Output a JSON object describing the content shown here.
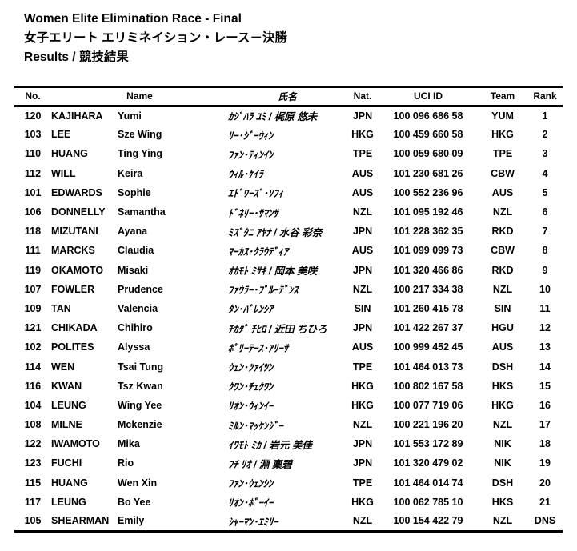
{
  "header": {
    "title_en": "Women Elite Elimination Race - Final",
    "title_ja": "女子エリート エリミネイション・レース－決勝",
    "results_label": "Results / 競技結果"
  },
  "table": {
    "columns": {
      "no": "No.",
      "name": "Name",
      "name_ja": "氏名",
      "nat": "Nat.",
      "uci_id": "UCI ID",
      "team": "Team",
      "rank": "Rank"
    },
    "rows": [
      {
        "no": "120",
        "last": "KAJIHARA",
        "first": "Yumi",
        "name_ja": "ｶｼﾞﾊﾗ ﾕﾐ / 梶原 悠未",
        "nat": "JPN",
        "uci_id": "100 096 686 58",
        "team": "YUM",
        "rank": "1"
      },
      {
        "no": "103",
        "last": "LEE",
        "first": "Sze Wing",
        "name_ja": "ﾘｰ･ｼﾞｰｳｨﾝ",
        "nat": "HKG",
        "uci_id": "100 459 660 58",
        "team": "HKG",
        "rank": "2"
      },
      {
        "no": "110",
        "last": "HUANG",
        "first": "Ting Ying",
        "name_ja": "ﾌｧﾝ･ﾃｨﾝｲﾝ",
        "nat": "TPE",
        "uci_id": "100 059 680 09",
        "team": "TPE",
        "rank": "3"
      },
      {
        "no": "112",
        "last": "WILL",
        "first": "Keira",
        "name_ja": "ｳｨﾙ･ｹｲﾗ",
        "nat": "AUS",
        "uci_id": "101 230 681 26",
        "team": "CBW",
        "rank": "4"
      },
      {
        "no": "101",
        "last": "EDWARDS",
        "first": "Sophie",
        "name_ja": "ｴﾄﾞﾜｰｽﾞ･ｿﾌｨ",
        "nat": "AUS",
        "uci_id": "100 552 236 96",
        "team": "AUS",
        "rank": "5"
      },
      {
        "no": "106",
        "last": "DONNELLY",
        "first": "Samantha",
        "name_ja": "ﾄﾞﾈﾘｰ･ｻﾏﾝｻ",
        "nat": "NZL",
        "uci_id": "101 095 192 46",
        "team": "NZL",
        "rank": "6"
      },
      {
        "no": "118",
        "last": "MIZUTANI",
        "first": "Ayana",
        "name_ja": "ﾐｽﾞﾀﾆ ｱﾔﾅ / 水谷 彩奈",
        "nat": "JPN",
        "uci_id": "101 228 362 35",
        "team": "RKD",
        "rank": "7"
      },
      {
        "no": "111",
        "last": "MARCKS",
        "first": "Claudia",
        "name_ja": "ﾏｰｶｽ･ｸﾗｳﾃﾞｨｱ",
        "nat": "AUS",
        "uci_id": "101 099 099 73",
        "team": "CBW",
        "rank": "8"
      },
      {
        "no": "119",
        "last": "OKAMOTO",
        "first": "Misaki",
        "name_ja": "ｵｶﾓﾄ ﾐｻｷ / 岡本 美咲",
        "nat": "JPN",
        "uci_id": "101 320 466 86",
        "team": "RKD",
        "rank": "9"
      },
      {
        "no": "107",
        "last": "FOWLER",
        "first": "Prudence",
        "name_ja": "ﾌｧｳﾗｰ･ﾌﾟﾙｰﾃﾞﾝｽ",
        "nat": "NZL",
        "uci_id": "100 217 334 38",
        "team": "NZL",
        "rank": "10"
      },
      {
        "no": "109",
        "last": "TAN",
        "first": "Valencia",
        "name_ja": "ﾀﾝ･ﾊﾞﾚﾝｼｱ",
        "nat": "SIN",
        "uci_id": "101 260 415 78",
        "team": "SIN",
        "rank": "11"
      },
      {
        "no": "121",
        "last": "CHIKADA",
        "first": "Chihiro",
        "name_ja": "ﾁｶﾀﾞ ﾁﾋﾛ / 近田 ちひろ",
        "nat": "JPN",
        "uci_id": "101 422 267 37",
        "team": "HGU",
        "rank": "12"
      },
      {
        "no": "102",
        "last": "POLITES",
        "first": "Alyssa",
        "name_ja": "ﾎﾟﾘｰﾃｰｽ･ｱﾘｰｻ",
        "nat": "AUS",
        "uci_id": "100 999 452 45",
        "team": "AUS",
        "rank": "13"
      },
      {
        "no": "114",
        "last": "WEN",
        "first": "Tsai Tung",
        "name_ja": "ｳｪﾝ･ﾂｧｲﾂﾝ",
        "nat": "TPE",
        "uci_id": "101 464 013 73",
        "team": "DSH",
        "rank": "14"
      },
      {
        "no": "116",
        "last": "KWAN",
        "first": "Tsz Kwan",
        "name_ja": "ｸﾜﾝ･ﾁｪｸﾜﾝ",
        "nat": "HKG",
        "uci_id": "100 802 167 58",
        "team": "HKS",
        "rank": "15"
      },
      {
        "no": "104",
        "last": "LEUNG",
        "first": "Wing Yee",
        "name_ja": "ﾘｵﾝ･ｳｨﾝｲｰ",
        "nat": "HKG",
        "uci_id": "100 077 719 06",
        "team": "HKG",
        "rank": "16"
      },
      {
        "no": "108",
        "last": "MILNE",
        "first": "Mckenzie",
        "name_ja": "ﾐﾙﾝ･ﾏｯｹﾝｼﾞｰ",
        "nat": "NZL",
        "uci_id": "100 221 196 20",
        "team": "NZL",
        "rank": "17"
      },
      {
        "no": "122",
        "last": "IWAMOTO",
        "first": "Mika",
        "name_ja": "ｲﾜﾓﾄ ﾐｶ / 岩元 美佳",
        "nat": "JPN",
        "uci_id": "101 553 172 89",
        "team": "NIK",
        "rank": "18"
      },
      {
        "no": "123",
        "last": "FUCHI",
        "first": "Rio",
        "name_ja": "ﾌﾁ ﾘｵ / 淵 稟碧",
        "nat": "JPN",
        "uci_id": "101 320 479 02",
        "team": "NIK",
        "rank": "19"
      },
      {
        "no": "115",
        "last": "HUANG",
        "first": "Wen Xin",
        "name_ja": "ﾌｧﾝ･ｳｪﾝｼﾝ",
        "nat": "TPE",
        "uci_id": "101 464 014 74",
        "team": "DSH",
        "rank": "20"
      },
      {
        "no": "117",
        "last": "LEUNG",
        "first": "Bo Yee",
        "name_ja": "ﾘｵﾝ･ﾎﾞｰｲｰ",
        "nat": "HKG",
        "uci_id": "100 062 785 10",
        "team": "HKS",
        "rank": "21"
      },
      {
        "no": "105",
        "last": "SHEARMAN",
        "first": "Emily",
        "name_ja": "ｼｬｰﾏﾝ･ｴﾐﾘｰ",
        "nat": "NZL",
        "uci_id": "100 154 422 79",
        "team": "NZL",
        "rank": "DNS"
      }
    ]
  },
  "colors": {
    "text": "#000000",
    "background": "#ffffff",
    "rule": "#000000"
  }
}
